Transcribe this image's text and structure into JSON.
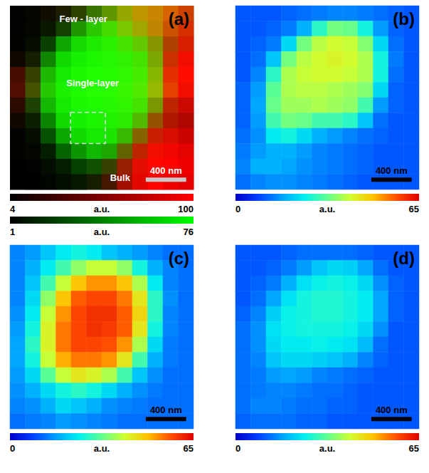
{
  "chart_data": [
    {
      "type": "heatmap",
      "panel_label": "(a)",
      "scale_bar": "400 nm",
      "tick_labels": false,
      "annotations": [
        "Few - layer",
        "Single-layer",
        "Bulk"
      ],
      "channels": [
        {
          "color": "#ff0000",
          "colorbar_range": [
            4,
            100
          ],
          "colorbar_ticks": [
            4,
            100
          ],
          "colorbar_label": "a.u.",
          "cells": [
            [
              4,
              5,
              10,
              15,
              20,
              25,
              40,
              60,
              75,
              80,
              85,
              80
            ],
            [
              4,
              5,
              8,
              12,
              15,
              20,
              30,
              50,
              65,
              75,
              80,
              85
            ],
            [
              5,
              6,
              8,
              10,
              12,
              15,
              20,
              30,
              40,
              55,
              70,
              85
            ],
            [
              10,
              12,
              10,
              10,
              12,
              15,
              18,
              22,
              30,
              50,
              80,
              95
            ],
            [
              30,
              25,
              15,
              12,
              14,
              16,
              18,
              22,
              30,
              55,
              90,
              100
            ],
            [
              35,
              30,
              18,
              14,
              16,
              18,
              20,
              25,
              35,
              60,
              90,
              95
            ],
            [
              20,
              15,
              12,
              12,
              14,
              16,
              18,
              22,
              30,
              50,
              75,
              80
            ],
            [
              10,
              8,
              8,
              10,
              12,
              14,
              16,
              20,
              35,
              60,
              70,
              70
            ],
            [
              6,
              6,
              6,
              8,
              10,
              12,
              14,
              25,
              55,
              80,
              85,
              80
            ],
            [
              5,
              5,
              5,
              6,
              8,
              10,
              15,
              40,
              75,
              95,
              95,
              90
            ],
            [
              4,
              4,
              5,
              5,
              6,
              10,
              25,
              60,
              90,
              100,
              100,
              95
            ],
            [
              4,
              4,
              4,
              5,
              6,
              12,
              30,
              65,
              90,
              100,
              95,
              90
            ]
          ]
        },
        {
          "color": "#00ff00",
          "colorbar_range": [
            1,
            76
          ],
          "colorbar_ticks": [
            1,
            76
          ],
          "colorbar_label": "a.u.",
          "cells": [
            [
              2,
              3,
              5,
              10,
              20,
              35,
              45,
              50,
              45,
              40,
              30,
              20
            ],
            [
              2,
              3,
              8,
              20,
              45,
              60,
              65,
              60,
              50,
              40,
              25,
              15
            ],
            [
              2,
              5,
              20,
              50,
              65,
              70,
              72,
              68,
              60,
              45,
              20,
              10
            ],
            [
              3,
              10,
              40,
              65,
              72,
              74,
              74,
              72,
              68,
              50,
              15,
              5
            ],
            [
              5,
              20,
              55,
              70,
              74,
              76,
              75,
              74,
              70,
              55,
              15,
              5
            ],
            [
              5,
              25,
              60,
              72,
              75,
              76,
              75,
              74,
              70,
              55,
              20,
              5
            ],
            [
              4,
              20,
              55,
              70,
              74,
              75,
              74,
              73,
              68,
              45,
              12,
              4
            ],
            [
              3,
              10,
              40,
              65,
              72,
              73,
              72,
              70,
              55,
              25,
              8,
              3
            ],
            [
              2,
              5,
              25,
              50,
              65,
              70,
              68,
              55,
              30,
              10,
              5,
              2
            ],
            [
              2,
              3,
              10,
              30,
              45,
              55,
              50,
              30,
              12,
              5,
              3,
              2
            ],
            [
              1,
              2,
              5,
              10,
              20,
              25,
              20,
              10,
              5,
              3,
              2,
              1
            ],
            [
              1,
              1,
              3,
              5,
              8,
              10,
              8,
              5,
              3,
              2,
              1,
              1
            ]
          ]
        }
      ]
    },
    {
      "type": "heatmap",
      "panel_label": "(b)",
      "scale_bar": "400 nm",
      "tick_labels": false,
      "colorbar_range": [
        0,
        65
      ],
      "colorbar_ticks": [
        0,
        65
      ],
      "colorbar_label": "a.u.",
      "cells": [
        [
          10,
          10,
          10,
          11,
          12,
          13,
          14,
          14,
          13,
          12,
          11,
          10
        ],
        [
          10,
          10,
          11,
          13,
          18,
          28,
          34,
          33,
          26,
          16,
          11,
          10
        ],
        [
          10,
          11,
          13,
          22,
          34,
          39,
          41,
          40,
          35,
          22,
          12,
          10
        ],
        [
          10,
          12,
          20,
          34,
          39,
          41,
          42,
          41,
          38,
          26,
          13,
          10
        ],
        [
          10,
          14,
          28,
          38,
          40,
          41,
          41,
          40,
          38,
          26,
          12,
          10
        ],
        [
          11,
          16,
          32,
          38,
          39,
          39,
          38,
          37,
          35,
          22,
          11,
          10
        ],
        [
          11,
          17,
          33,
          37,
          37,
          38,
          37,
          36,
          30,
          16,
          11,
          10
        ],
        [
          11,
          16,
          30,
          34,
          33,
          30,
          30,
          28,
          20,
          12,
          10,
          10
        ],
        [
          12,
          15,
          24,
          26,
          22,
          18,
          16,
          14,
          12,
          11,
          10,
          10
        ],
        [
          13,
          16,
          18,
          18,
          16,
          14,
          13,
          12,
          11,
          10,
          10,
          10
        ],
        [
          14,
          18,
          18,
          17,
          15,
          14,
          13,
          12,
          11,
          10,
          10,
          10
        ],
        [
          12,
          14,
          15,
          15,
          14,
          13,
          12,
          11,
          10,
          10,
          10,
          10
        ]
      ]
    },
    {
      "type": "heatmap",
      "panel_label": "(c)",
      "scale_bar": "400 nm",
      "tick_labels": false,
      "colorbar_range": [
        0,
        65
      ],
      "colorbar_ticks": [
        0,
        65
      ],
      "colorbar_label": "a.u.",
      "cells": [
        [
          14,
          16,
          20,
          24,
          26,
          24,
          20,
          18,
          16,
          14,
          12,
          12
        ],
        [
          14,
          18,
          24,
          30,
          36,
          40,
          40,
          36,
          26,
          18,
          14,
          12
        ],
        [
          14,
          20,
          30,
          40,
          48,
          52,
          52,
          48,
          38,
          24,
          14,
          12
        ],
        [
          14,
          22,
          36,
          48,
          56,
          58,
          58,
          54,
          44,
          28,
          15,
          12
        ],
        [
          15,
          24,
          40,
          52,
          58,
          60,
          60,
          56,
          46,
          28,
          14,
          12
        ],
        [
          16,
          26,
          42,
          54,
          58,
          60,
          59,
          56,
          44,
          26,
          14,
          12
        ],
        [
          17,
          28,
          42,
          54,
          58,
          58,
          57,
          52,
          38,
          22,
          13,
          12
        ],
        [
          17,
          26,
          40,
          50,
          54,
          54,
          52,
          44,
          30,
          18,
          13,
          12
        ],
        [
          16,
          22,
          32,
          40,
          44,
          42,
          38,
          30,
          20,
          15,
          12,
          12
        ],
        [
          15,
          18,
          22,
          26,
          28,
          26,
          22,
          18,
          15,
          13,
          12,
          12
        ],
        [
          14,
          15,
          18,
          22,
          20,
          18,
          15,
          14,
          13,
          12,
          12,
          12
        ],
        [
          12,
          13,
          14,
          16,
          15,
          14,
          13,
          12,
          12,
          12,
          12,
          12
        ]
      ]
    },
    {
      "type": "heatmap",
      "panel_label": "(d)",
      "scale_bar": "400 nm",
      "tick_labels": false,
      "colorbar_range": [
        0,
        65
      ],
      "colorbar_ticks": [
        0,
        65
      ],
      "colorbar_label": "a.u.",
      "cells": [
        [
          10,
          10,
          10,
          11,
          12,
          12,
          12,
          12,
          11,
          10,
          10,
          10
        ],
        [
          10,
          10,
          11,
          13,
          16,
          20,
          22,
          21,
          17,
          12,
          10,
          10
        ],
        [
          10,
          11,
          13,
          18,
          23,
          25,
          26,
          25,
          22,
          15,
          11,
          10
        ],
        [
          10,
          12,
          17,
          23,
          26,
          27,
          27,
          26,
          24,
          17,
          11,
          10
        ],
        [
          11,
          14,
          21,
          25,
          26,
          27,
          27,
          26,
          24,
          17,
          11,
          10
        ],
        [
          12,
          15,
          23,
          25,
          26,
          26,
          26,
          25,
          22,
          15,
          10,
          10
        ],
        [
          12,
          15,
          22,
          24,
          24,
          25,
          24,
          23,
          19,
          12,
          10,
          10
        ],
        [
          12,
          14,
          20,
          22,
          22,
          21,
          20,
          18,
          14,
          11,
          10,
          10
        ],
        [
          12,
          13,
          16,
          17,
          16,
          14,
          13,
          12,
          11,
          10,
          10,
          10
        ],
        [
          12,
          13,
          14,
          14,
          13,
          12,
          12,
          11,
          10,
          10,
          10,
          10
        ],
        [
          12,
          14,
          14,
          13,
          12,
          12,
          11,
          11,
          10,
          10,
          10,
          10
        ],
        [
          11,
          12,
          12,
          12,
          11,
          11,
          10,
          10,
          10,
          10,
          10,
          10
        ]
      ]
    }
  ]
}
